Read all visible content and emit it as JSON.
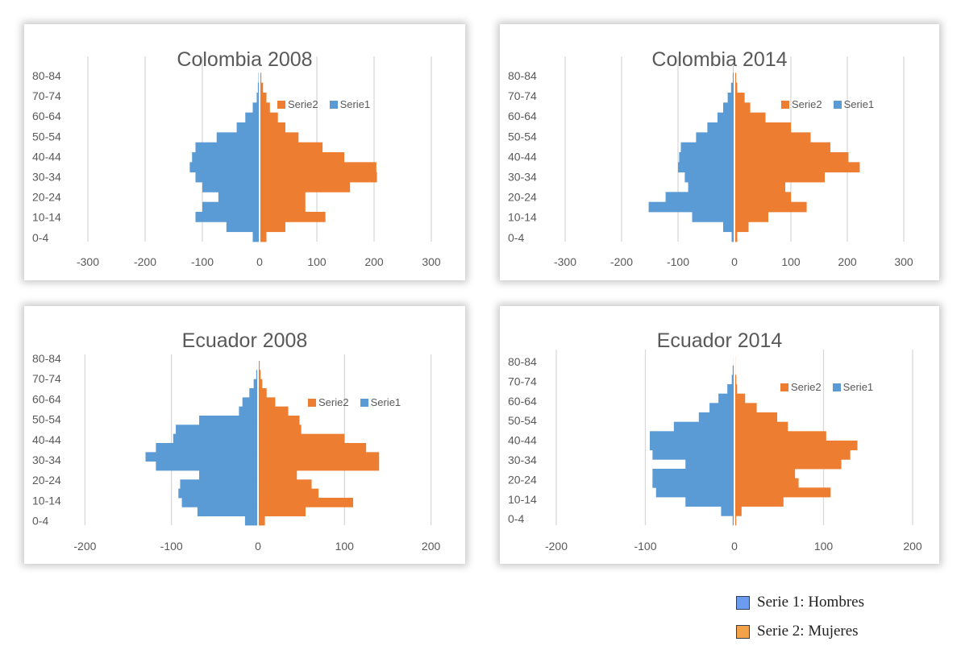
{
  "colors": {
    "serie1": "#5b9bd5",
    "serie2": "#ed7d31",
    "grid": "#d9d9d9",
    "text": "#595959"
  },
  "chart_data": [
    {
      "type": "bar",
      "title": "Colombia 2008",
      "orientation": "horizontal-pyramid",
      "y_tick_labels": [
        "0-4",
        "10-14",
        "20-24",
        "30-34",
        "40-44",
        "50-54",
        "60-64",
        "70-74",
        "80-84"
      ],
      "x_ticks": [
        -300,
        -200,
        -100,
        0,
        100,
        200,
        300
      ],
      "xlim": [
        -330,
        330
      ],
      "grid": true,
      "legend_position": "top-right",
      "series": [
        {
          "name": "Serie2",
          "values": [
            12,
            45,
            115,
            80,
            80,
            158,
            205,
            204,
            148,
            110,
            68,
            45,
            32,
            18,
            12,
            6,
            3,
            1
          ]
        },
        {
          "name": "Serie1",
          "values": [
            -12,
            -58,
            -112,
            -100,
            -72,
            -100,
            -112,
            -122,
            -118,
            -112,
            -75,
            -40,
            -25,
            -12,
            -5,
            -3,
            -2,
            -1
          ]
        }
      ]
    },
    {
      "type": "bar",
      "title": "Colombia 2014",
      "orientation": "horizontal-pyramid",
      "y_tick_labels": [
        "0-4",
        "10-14",
        "20-24",
        "30-34",
        "40-44",
        "50-54",
        "60-64",
        "70-74",
        "80-84"
      ],
      "x_ticks": [
        -300,
        -200,
        -100,
        0,
        100,
        200,
        300
      ],
      "xlim": [
        -330,
        330
      ],
      "grid": true,
      "legend_position": "top-right",
      "series": [
        {
          "name": "Serie2",
          "values": [
            5,
            25,
            60,
            128,
            100,
            90,
            160,
            222,
            202,
            170,
            135,
            100,
            55,
            28,
            18,
            5,
            3,
            1
          ]
        },
        {
          "name": "Serie1",
          "values": [
            -5,
            -20,
            -75,
            -152,
            -122,
            -82,
            -88,
            -100,
            -98,
            -95,
            -68,
            -48,
            -30,
            -20,
            -12,
            -6,
            -3,
            -2
          ]
        }
      ]
    },
    {
      "type": "bar",
      "title": "Ecuador 2008",
      "orientation": "horizontal-pyramid",
      "y_tick_labels": [
        "0-4",
        "10-14",
        "20-24",
        "30-34",
        "40-44",
        "50-54",
        "60-64",
        "70-74",
        "80-84"
      ],
      "x_ticks": [
        -200,
        -100,
        0,
        100,
        200
      ],
      "xlim": [
        -220,
        220
      ],
      "grid": true,
      "legend_position": "top-right",
      "series": [
        {
          "name": "Serie2",
          "values": [
            8,
            55,
            110,
            70,
            62,
            45,
            140,
            140,
            125,
            100,
            50,
            48,
            35,
            20,
            10,
            5,
            3,
            2
          ]
        },
        {
          "name": "Serie1",
          "values": [
            -15,
            -70,
            -88,
            -92,
            -90,
            -68,
            -118,
            -130,
            -118,
            -98,
            -95,
            -68,
            -22,
            -18,
            -10,
            -5,
            -2,
            -1
          ]
        }
      ]
    },
    {
      "type": "bar",
      "title": "Ecuador 2014",
      "orientation": "horizontal-pyramid",
      "y_tick_labels": [
        "0-4",
        "10-14",
        "20-24",
        "30-34",
        "40-44",
        "50-54",
        "60-64",
        "70-74",
        "80-84"
      ],
      "x_ticks": [
        -200,
        -100,
        0,
        100,
        200
      ],
      "xlim": [
        -220,
        220
      ],
      "grid": true,
      "legend_position": "top-right",
      "series": [
        {
          "name": "Serie2",
          "values": [
            2,
            8,
            55,
            108,
            72,
            68,
            120,
            130,
            138,
            103,
            60,
            48,
            25,
            12,
            3,
            2,
            1,
            1
          ]
        },
        {
          "name": "Serie1",
          "values": [
            -2,
            -15,
            -55,
            -88,
            -92,
            -92,
            -55,
            -92,
            -95,
            -95,
            -68,
            -40,
            -28,
            -18,
            -8,
            -3,
            -2,
            -1
          ]
        }
      ]
    }
  ],
  "key": {
    "serie1_label": "Serie 1: Hombres",
    "serie2_label": "Serie 2: Mujeres",
    "serie1_color": "#6b9cf0",
    "serie2_color": "#f4a24a"
  }
}
